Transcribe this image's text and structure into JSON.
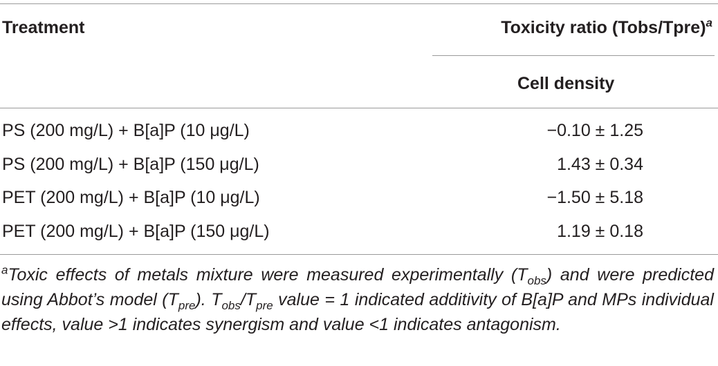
{
  "header": {
    "col1": "Treatment",
    "col2": "Toxicity ratio (Tobs/Tpre)",
    "col2_marker": "a",
    "subcol": "Cell density"
  },
  "table": {
    "rows": [
      [
        "PS (200 mg/L) + B[a]P (10 μg/L)",
        "−0.10 ± 1.25"
      ],
      [
        "PS (200 mg/L) + B[a]P (150 μg/L)",
        "1.43 ± 0.34"
      ],
      [
        "PET (200 mg/L) + B[a]P (10 μg/L)",
        "−1.50 ± 5.18"
      ],
      [
        "PET (200 mg/L) + B[a]P (150 μg/L)",
        "1.19 ± 0.18"
      ]
    ]
  },
  "footnote": {
    "marker": "a",
    "parts": [
      "Toxic effects of metals mixture were measured experimentally (T",
      "obs",
      ") and were predicted using Abbot’s model (T",
      "pre",
      "). T",
      "obs",
      "/T",
      "pre",
      " value = 1 indicated additivity of B[a]P and MPs individual effects, value >1 indicates synergism and value <1 indicates antagonism."
    ]
  }
}
